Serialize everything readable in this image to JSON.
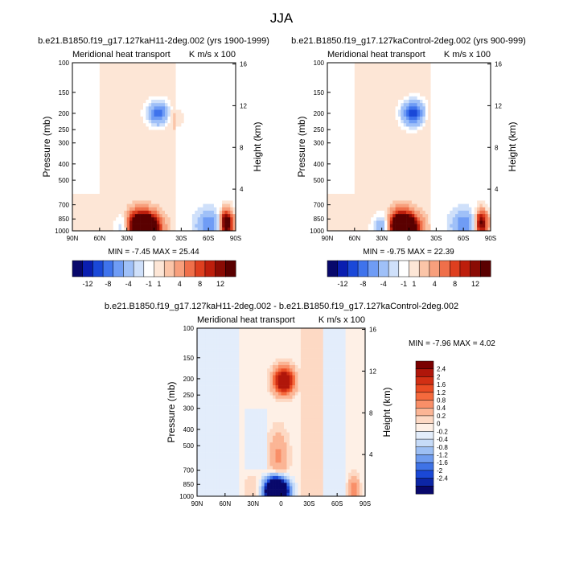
{
  "page_title": "JJA",
  "chart_data": [
    {
      "type": "heatmap",
      "title": "b.e21.B1850.f19_g17.127kaH11-2deg.002 (yrs 1900-1999)",
      "left_subtitle": "Meridional heat transport",
      "right_subtitle": "K m/s x 100",
      "ylabel": "Pressure (mb)",
      "ylabel_right": "Height (km)",
      "x_ticks": [
        "90N",
        "60N",
        "30N",
        "0",
        "30S",
        "60S",
        "90S"
      ],
      "y_ticks": [
        "100",
        "150",
        "200",
        "250",
        "300",
        "400",
        "500",
        "700",
        "850",
        "1000"
      ],
      "y_right_ticks": [
        "16",
        "12",
        "8",
        "4"
      ],
      "min_max": "MIN = -7.45   MAX = 25.44",
      "xlim": [
        90,
        -90
      ],
      "ylim": [
        1000,
        100
      ],
      "features": [
        {
          "lat": 8,
          "p": 960,
          "value": 25.44
        },
        {
          "lat": 18,
          "p": 930,
          "value": 18
        },
        {
          "lat": -80,
          "p": 900,
          "value": 16
        },
        {
          "lat": -5,
          "p": 200,
          "value": -7.45
        },
        {
          "lat": 28,
          "p": 950,
          "value": -6
        },
        {
          "lat": -60,
          "p": 920,
          "value": -5
        },
        {
          "lat": -22,
          "p": 210,
          "value": 1.5
        }
      ]
    },
    {
      "type": "heatmap",
      "title": "b.e21.B1850.f19_g17.127kaControl-2deg.002 (yrs 900-999)",
      "left_subtitle": "Meridional heat transport",
      "right_subtitle": "K m/s x 100",
      "ylabel": "Pressure (mb)",
      "ylabel_right": "Height (km)",
      "x_ticks": [
        "90N",
        "60N",
        "30N",
        "0",
        "30S",
        "60S",
        "90S"
      ],
      "y_ticks": [
        "100",
        "150",
        "200",
        "250",
        "300",
        "400",
        "500",
        "700",
        "850",
        "1000"
      ],
      "y_right_ticks": [
        "16",
        "12",
        "8",
        "4"
      ],
      "min_max": "MIN = -9.75   MAX = 22.39",
      "xlim": [
        90,
        -90
      ],
      "ylim": [
        1000,
        100
      ],
      "features": [
        {
          "lat": 3,
          "p": 960,
          "value": 22.39
        },
        {
          "lat": 12,
          "p": 930,
          "value": 16
        },
        {
          "lat": -80,
          "p": 900,
          "value": 12
        },
        {
          "lat": -5,
          "p": 200,
          "value": -9.75
        },
        {
          "lat": 25,
          "p": 950,
          "value": -7
        },
        {
          "lat": -60,
          "p": 920,
          "value": -5
        },
        {
          "lat": -22,
          "p": 210,
          "value": 1
        }
      ]
    },
    {
      "type": "heatmap",
      "title": "b.e21.B1850.f19_g17.127kaH11-2deg.002 - b.e21.B1850.f19_g17.127kaControl-2deg.002",
      "left_subtitle": "Meridional heat transport",
      "right_subtitle": "K m/s x 100",
      "ylabel": "Pressure (mb)",
      "ylabel_right": "Height (km)",
      "x_ticks": [
        "90N",
        "60N",
        "30N",
        "0",
        "30S",
        "60S",
        "90S"
      ],
      "y_ticks": [
        "100",
        "150",
        "200",
        "250",
        "300",
        "400",
        "500",
        "700",
        "850",
        "1000"
      ],
      "y_right_ticks": [
        "16",
        "12",
        "8",
        "4"
      ],
      "min_max": "MIN = -7.96   MAX =   4.02",
      "xlim": [
        90,
        -90
      ],
      "ylim": [
        1000,
        100
      ],
      "features": [
        {
          "lat": -3,
          "p": 205,
          "value": 4.02
        },
        {
          "lat": 5,
          "p": 940,
          "value": -7.96
        },
        {
          "lat": 3,
          "p": 600,
          "value": 0.8
        },
        {
          "lat": -78,
          "p": 920,
          "value": 1.2
        },
        {
          "lat": 30,
          "p": 900,
          "value": 0.3
        }
      ]
    }
  ],
  "colorbars": {
    "top": {
      "levels": [
        "-12",
        "-8",
        "-4",
        "-1",
        "1",
        "4",
        "8",
        "12"
      ],
      "colors": [
        "#08086b",
        "#0a1eb0",
        "#1a48d8",
        "#3f73ec",
        "#6f9cf5",
        "#9fc0f8",
        "#cfe0fa",
        "#ffffff",
        "#fde6d6",
        "#fbc5a8",
        "#f79f7c",
        "#ef6f4a",
        "#de3f1f",
        "#bd1e0c",
        "#8a0b04",
        "#5a0000"
      ]
    },
    "diff": {
      "levels": [
        "2.4",
        "2",
        "1.6",
        "1.2",
        "0.8",
        "0.4",
        "0.2",
        "0",
        "-0.2",
        "-0.4",
        "-0.8",
        "-1.2",
        "-1.6",
        "-2",
        "-2.4"
      ],
      "colors": [
        "#7a0000",
        "#b0160a",
        "#d22f14",
        "#ea4c24",
        "#f56a3d",
        "#f98f68",
        "#fbb595",
        "#fdd9c4",
        "#fef0e6",
        "#e3edfb",
        "#c6dbf8",
        "#9dbff4",
        "#6f9cef",
        "#3f73e6",
        "#1a48d6",
        "#0c26a6",
        "#08086b"
      ]
    }
  },
  "colors": {
    "neg_strong": "#08086b",
    "pos_strong": "#7a0000",
    "background_pos": "#fde9dc",
    "background_neg": "#cfe2fb"
  }
}
